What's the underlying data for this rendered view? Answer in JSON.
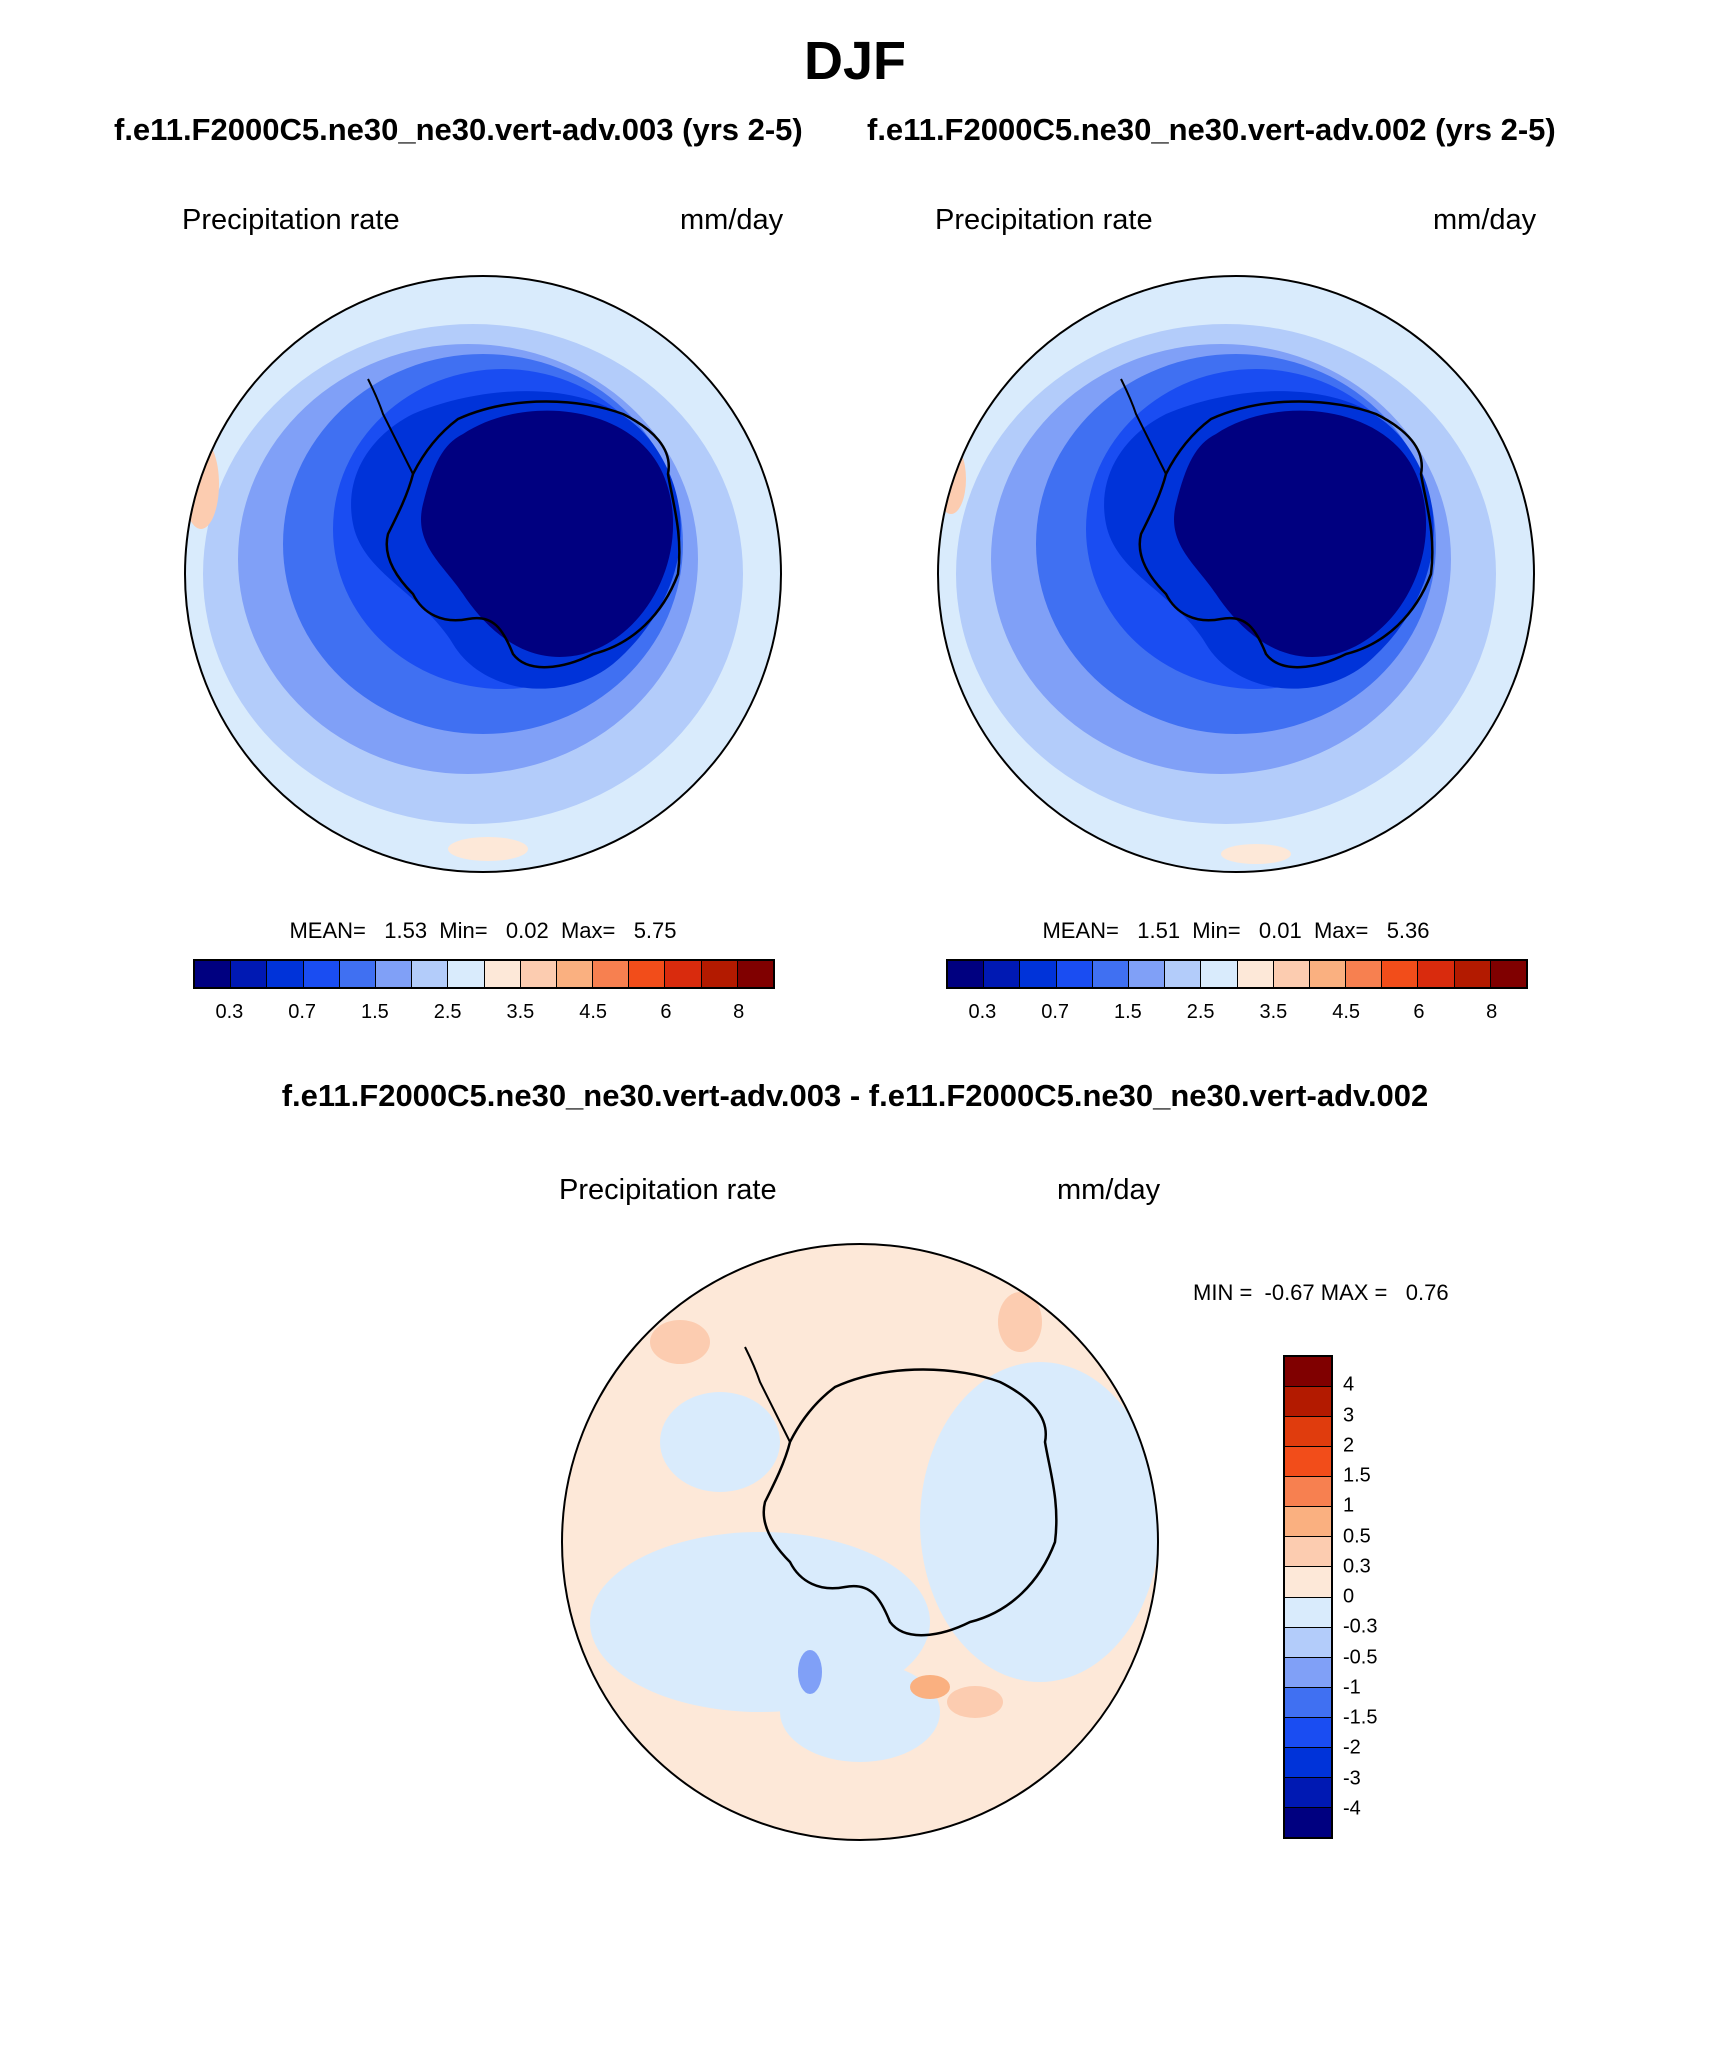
{
  "season": "DJF",
  "colors": {
    "abs_scale": [
      "#000080",
      "#0019b3",
      "#0033d9",
      "#1a4df2",
      "#4070f2",
      "#80a0f7",
      "#b3ccfa",
      "#d9ebfc",
      "#fde8d8",
      "#fcccb0",
      "#fab080",
      "#f78050",
      "#f24d1a",
      "#d92b0d",
      "#b31a00",
      "#800000"
    ],
    "diff_scale": [
      "#800000",
      "#b31a00",
      "#e03c0d",
      "#f24d1a",
      "#f78050",
      "#fab080",
      "#fcccb0",
      "#fde8d8",
      "#d9ebfc",
      "#b3ccfa",
      "#80a0f7",
      "#4070f2",
      "#1a4df2",
      "#0033d9",
      "#0019b3",
      "#000080"
    ]
  },
  "left_panel": {
    "case": "f.e11.F2000C5.ne30_ne30.vert-adv.003 (yrs 2-5)",
    "variable": "Precipitation rate",
    "units": "mm/day",
    "stats": "MEAN=   1.53  Min=   0.02  Max=   5.75",
    "ticks": [
      "0.3",
      "0.7",
      "1.5",
      "2.5",
      "3.5",
      "4.5",
      "6",
      "8"
    ]
  },
  "right_panel": {
    "case": "f.e11.F2000C5.ne30_ne30.vert-adv.002 (yrs 2-5)",
    "variable": "Precipitation rate",
    "units": "mm/day",
    "stats": "MEAN=   1.51  Min=   0.01  Max=   5.36",
    "ticks": [
      "0.3",
      "0.7",
      "1.5",
      "2.5",
      "3.5",
      "4.5",
      "6",
      "8"
    ]
  },
  "diff_panel": {
    "title": "f.e11.F2000C5.ne30_ne30.vert-adv.003 - f.e11.F2000C5.ne30_ne30.vert-adv.002",
    "variable": "Precipitation rate",
    "units": "mm/day",
    "stats": "MIN =  -0.67 MAX =   0.76",
    "ticks": [
      "4",
      "3",
      "2",
      "1.5",
      "1",
      "0.5",
      "0.3",
      "0",
      "-0.3",
      "-0.5",
      "-1",
      "-1.5",
      "-2",
      "-3",
      "-4"
    ]
  }
}
